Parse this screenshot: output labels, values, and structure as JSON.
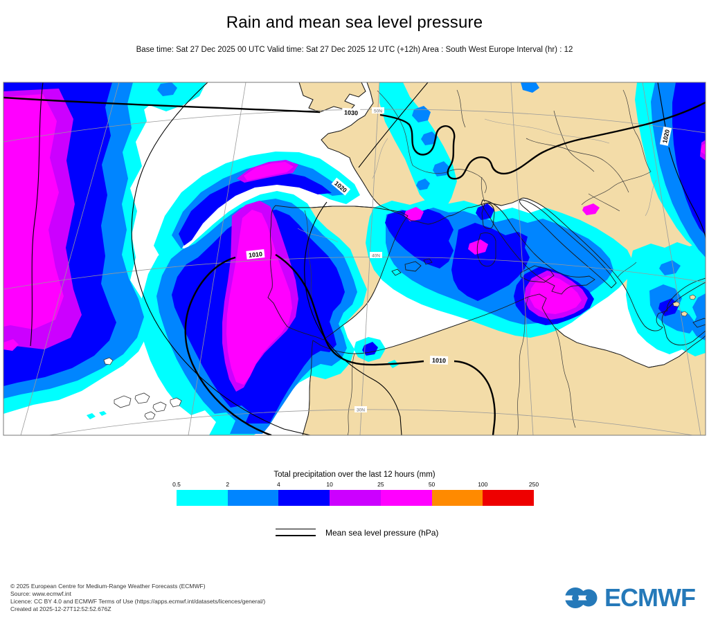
{
  "header": {
    "title": "Rain and mean sea level pressure",
    "subtitle": "Base time: Sat 27 Dec 2025 00 UTC Valid time: Sat 27 Dec 2025 12 UTC (+12h) Area : South West Europe Interval (hr) : 12"
  },
  "map": {
    "contour_labels": [
      "1030",
      "1020",
      "1010",
      "1010",
      "1020"
    ],
    "graticule_labels": [
      "50N",
      "40N",
      "30N"
    ],
    "colors": {
      "land": "#F3DCA8",
      "sea": "#FFFFFF",
      "coast": "#1a1a1a",
      "graticule": "#999999",
      "contour": "#000000"
    }
  },
  "legend": {
    "precip": {
      "title": "Total precipitation over the last 12 hours (mm)",
      "ticks": [
        "0.5",
        "2",
        "4",
        "10",
        "25",
        "50",
        "100",
        "250"
      ],
      "colors": [
        "#00FFFF",
        "#0085FF",
        "#0000FF",
        "#CC00FF",
        "#FF00FF",
        "#FF8A00",
        "#EE0000"
      ]
    },
    "mslp": {
      "label": "Mean sea level pressure (hPa)"
    }
  },
  "footer": {
    "lines": [
      "© 2025 European Centre for Medium-Range Weather Forecasts (ECMWF)",
      "Source: www.ecmwf.int",
      "Licence: CC BY 4.0 and ECMWF Terms of Use (https://apps.ecmwf.int/datasets/licences/general/)",
      "Created at 2025-12-27T12:52:52.676Z"
    ],
    "logo_text": "ECMWF",
    "logo_color": "#2579B9"
  }
}
